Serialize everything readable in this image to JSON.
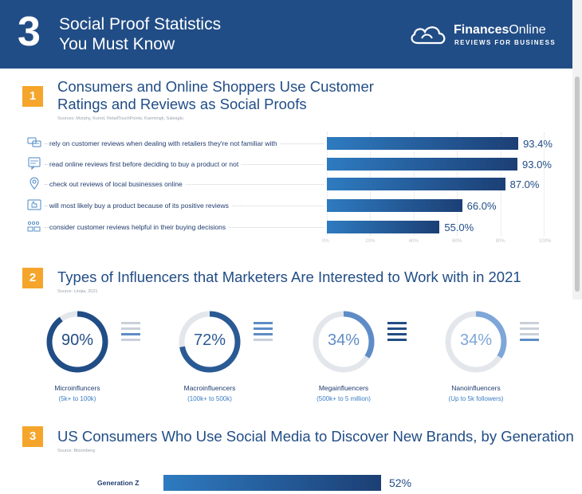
{
  "header": {
    "number": "3",
    "title_line1": "Social Proof Statistics",
    "title_line2": "You Must Know",
    "brand_name_bold": "Finances",
    "brand_name_rest": "Online",
    "brand_tagline": "REVIEWS FOR BUSINESS"
  },
  "colors": {
    "header_bg": "#214d86",
    "accent": "#f5a52b",
    "bar_light": "#2e7bc0",
    "bar_dark": "#1c3f75"
  },
  "section1": {
    "number": "1",
    "title_line1": "Consumers and Online Shoppers Use Customer",
    "title_line2": "Ratings and Reviews as Social Proofs",
    "source": "Sources: Murphy, Kured, RetailTouchPoints, Kaemingk, Saleaglu",
    "rows": [
      {
        "label": "rely on customer reviews when dealing with retailers they're not familiar with",
        "value_text": "93.4%",
        "icon": "reviews-icon"
      },
      {
        "label": "read online reviews first before deciding to buy a product or not",
        "value_text": "93.0%",
        "icon": "review-card-icon"
      },
      {
        "label": "check out reviews of local businesses online",
        "value_text": "87.0%",
        "icon": "location-pin-icon"
      },
      {
        "label": "will most likely buy a product because of its positive reviews",
        "value_text": "66.0%",
        "icon": "thumbs-up-icon"
      },
      {
        "label": "consider customer reviews helpful in their buying decisions",
        "value_text": "55.0%",
        "icon": "rating-icon"
      }
    ],
    "ticks": [
      "0%",
      "20%",
      "40%",
      "60%",
      "80%",
      "100%"
    ]
  },
  "section2": {
    "number": "2",
    "title": "Types of Influencers that Marketers Are Interested to Work with in 2021",
    "source": "Source: Linqia, 2021",
    "donuts": [
      {
        "pct_text": "90%",
        "name": "Microinfluncers",
        "range": "(5k+ to 100k)",
        "color": "#214d86"
      },
      {
        "pct_text": "72%",
        "name": "Macroinfluencers",
        "range": "(100k+ to 500k)",
        "color": "#2a5a94"
      },
      {
        "pct_text": "34%",
        "name": "Megainfluencers",
        "range": "(500k+ to 5 million)",
        "color": "#5e8cc7"
      },
      {
        "pct_text": "34%",
        "name": "Nanoinfluencers",
        "range": "(Up to 5k followers)",
        "color": "#7ea6d8"
      }
    ]
  },
  "section3": {
    "number": "3",
    "title": "US Consumers Who Use Social Media to Discover New Brands, by Generation",
    "source": "Source: Bloomberg",
    "rows": [
      {
        "label": "Generation Z",
        "value_text": "52%"
      }
    ]
  },
  "chart_data": [
    {
      "type": "bar",
      "orientation": "horizontal",
      "title": "Consumers and Online Shoppers Use Customer Ratings and Reviews as Social Proofs",
      "categories": [
        "rely on customer reviews when dealing with retailers they're not familiar with",
        "read online reviews first before deciding to buy a product or not",
        "check out reviews of local businesses online",
        "will most likely buy a product because of its positive reviews",
        "consider customer reviews helpful in their buying decisions"
      ],
      "values": [
        93.4,
        93.0,
        87.0,
        66.0,
        55.0
      ],
      "xlim": [
        0,
        100
      ],
      "grid": true
    },
    {
      "type": "pie",
      "style": "donut",
      "title": "Types of Influencers that Marketers Are Interested to Work with in 2021",
      "categories": [
        "Microinfluncers",
        "Macroinfluencers",
        "Megainfluencers",
        "Nanoinfluencers"
      ],
      "values": [
        90,
        72,
        34,
        34
      ]
    },
    {
      "type": "bar",
      "orientation": "horizontal",
      "title": "US Consumers Who Use Social Media to Discover New Brands, by Generation",
      "categories": [
        "Generation Z"
      ],
      "values": [
        52
      ]
    }
  ]
}
